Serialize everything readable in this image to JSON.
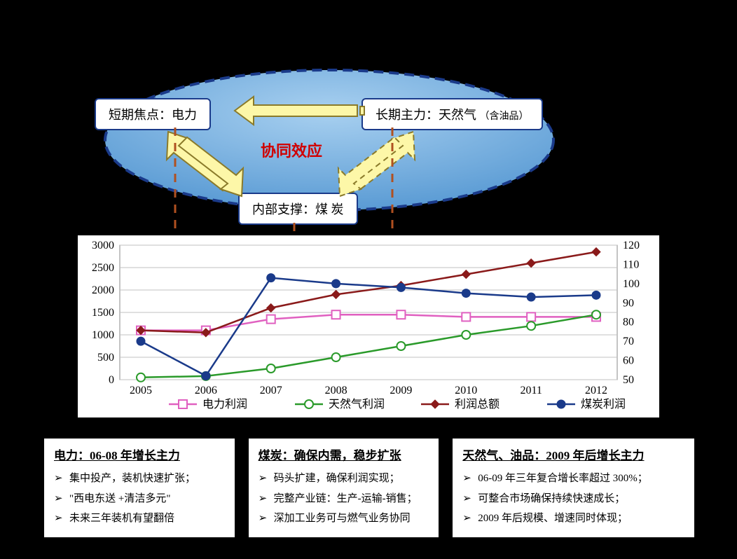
{
  "diagram": {
    "ellipse": {
      "fill_top": "#a8d0f0",
      "fill_bottom": "#5a9bd4",
      "stroke": "#1a3a8a",
      "stroke_width": 4,
      "dash": "14 8"
    },
    "box_left": {
      "label": "短期焦点：电力"
    },
    "box_right": {
      "label_main": "长期主力：天然气",
      "label_sub": "（含油品）"
    },
    "box_bottom": {
      "label": "内部支撑：煤 炭"
    },
    "synergy_label": "协同效应",
    "arrow": {
      "fill": "#fdf7a8",
      "stroke": "#8a7a2a",
      "stroke_width": 2
    },
    "connector": {
      "stroke": "#b05020",
      "stroke_width": 3,
      "dash": "12 10"
    }
  },
  "chart": {
    "type": "line",
    "background_color": "#ffffff",
    "border_color": "#000000",
    "grid_color": "#c0c0c0",
    "categories": [
      "2005",
      "2006",
      "2007",
      "2008",
      "2009",
      "2010",
      "2011",
      "2012"
    ],
    "left_axis": {
      "min": 0,
      "max": 3000,
      "step": 500
    },
    "right_axis": {
      "min": 50,
      "max": 120,
      "step": 10
    },
    "axis_fontsize": 16,
    "series": [
      {
        "name": "电力利润",
        "axis": "left",
        "color": "#e060c0",
        "marker": "square-open",
        "values": [
          1100,
          1100,
          1350,
          1450,
          1450,
          1400,
          1400,
          1400
        ]
      },
      {
        "name": "天然气利润",
        "axis": "left",
        "color": "#2a9a2a",
        "marker": "circle-open",
        "values": [
          50,
          80,
          250,
          500,
          750,
          1000,
          1200,
          1450
        ]
      },
      {
        "name": "利润总额",
        "axis": "left",
        "color": "#8a1a1a",
        "marker": "diamond",
        "values": [
          1100,
          1050,
          1600,
          1900,
          2100,
          2350,
          2600,
          2850
        ]
      },
      {
        "name": "煤炭利润",
        "axis": "right",
        "color": "#1a3a8a",
        "marker": "circle",
        "values": [
          70,
          52,
          103,
          100,
          98,
          95,
          93,
          94
        ]
      }
    ],
    "line_width": 2.5,
    "marker_size": 6
  },
  "panels": [
    {
      "title": "电力：06-08 年增长主力",
      "items": [
        "集中投产，装机快速扩张；",
        "\"西电东送 +清洁多元\"",
        "未来三年装机有望翻倍"
      ]
    },
    {
      "title": "煤炭：确保内需，稳步扩张",
      "items": [
        "码头扩建，确保利润实现；",
        "完整产业链：生产-运输-销售；",
        "深加工业务可与燃气业务协同"
      ]
    },
    {
      "title": "天然气、油品：2009 年后增长主力",
      "wide": true,
      "items": [
        "06-09 年三年复合增长率超过 300%；",
        "可整合市场确保持续快速成长；",
        "2009 年后规模、增速同时体现；"
      ]
    }
  ]
}
